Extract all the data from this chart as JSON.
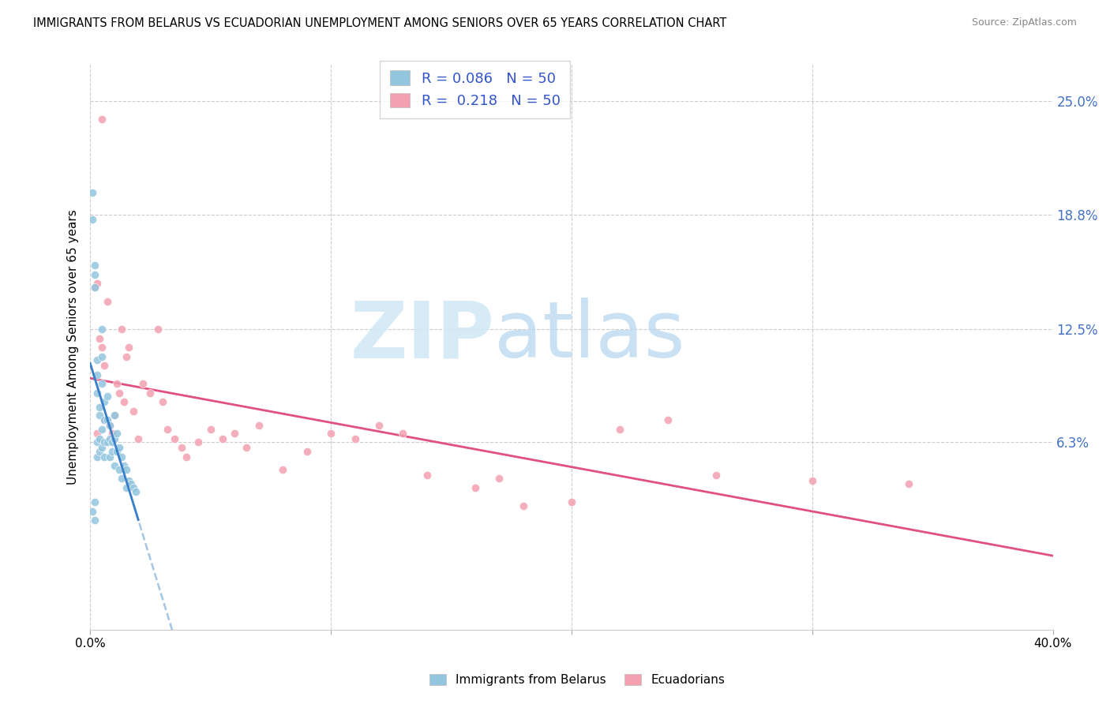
{
  "title": "IMMIGRANTS FROM BELARUS VS ECUADORIAN UNEMPLOYMENT AMONG SENIORS OVER 65 YEARS CORRELATION CHART",
  "source": "Source: ZipAtlas.com",
  "ylabel": "Unemployment Among Seniors over 65 years",
  "ytick_labels": [
    "6.3%",
    "12.5%",
    "18.8%",
    "25.0%"
  ],
  "ytick_values": [
    0.063,
    0.125,
    0.188,
    0.25
  ],
  "xlim": [
    0.0,
    0.4
  ],
  "ylim": [
    -0.04,
    0.27
  ],
  "legend_labels": [
    "Immigrants from Belarus",
    "Ecuadorians"
  ],
  "R_belarus": 0.086,
  "N_belarus": 50,
  "R_ecuador": 0.218,
  "N_ecuador": 50,
  "color_belarus": "#92C5DE",
  "color_ecuador": "#F4A0B0",
  "line_color_belarus_solid": "#3A7DC9",
  "line_color_belarus_dash": "#9ABFE0",
  "line_color_ecuador": "#E05080",
  "watermark_zip": "ZIP",
  "watermark_atlas": "atlas",
  "watermark_color_zip": "#D8EBF8",
  "watermark_color_atlas": "#C8DFF0",
  "belarus_x": [
    0.001,
    0.001,
    0.002,
    0.002,
    0.002,
    0.002,
    0.003,
    0.003,
    0.003,
    0.003,
    0.003,
    0.004,
    0.004,
    0.004,
    0.004,
    0.005,
    0.005,
    0.005,
    0.005,
    0.005,
    0.006,
    0.006,
    0.006,
    0.006,
    0.007,
    0.007,
    0.007,
    0.008,
    0.008,
    0.008,
    0.009,
    0.009,
    0.01,
    0.01,
    0.01,
    0.011,
    0.011,
    0.012,
    0.012,
    0.013,
    0.013,
    0.014,
    0.015,
    0.015,
    0.016,
    0.017,
    0.018,
    0.019,
    0.001,
    0.002
  ],
  "belarus_y": [
    0.185,
    0.2,
    0.16,
    0.155,
    0.148,
    0.02,
    0.108,
    0.1,
    0.09,
    0.063,
    0.055,
    0.082,
    0.078,
    0.065,
    0.058,
    0.125,
    0.11,
    0.095,
    0.07,
    0.06,
    0.085,
    0.075,
    0.063,
    0.055,
    0.088,
    0.075,
    0.063,
    0.072,
    0.065,
    0.055,
    0.063,
    0.058,
    0.078,
    0.065,
    0.05,
    0.068,
    0.058,
    0.06,
    0.048,
    0.055,
    0.043,
    0.05,
    0.048,
    0.038,
    0.042,
    0.04,
    0.038,
    0.036,
    0.025,
    0.03
  ],
  "ecuador_x": [
    0.002,
    0.003,
    0.004,
    0.005,
    0.006,
    0.006,
    0.007,
    0.008,
    0.009,
    0.01,
    0.011,
    0.012,
    0.013,
    0.014,
    0.015,
    0.016,
    0.018,
    0.02,
    0.022,
    0.025,
    0.028,
    0.03,
    0.032,
    0.035,
    0.038,
    0.04,
    0.045,
    0.05,
    0.055,
    0.06,
    0.065,
    0.07,
    0.08,
    0.09,
    0.1,
    0.11,
    0.12,
    0.13,
    0.14,
    0.16,
    0.17,
    0.18,
    0.2,
    0.22,
    0.24,
    0.26,
    0.3,
    0.34,
    0.003,
    0.005
  ],
  "ecuador_y": [
    0.148,
    0.15,
    0.12,
    0.115,
    0.105,
    0.075,
    0.14,
    0.072,
    0.068,
    0.078,
    0.095,
    0.09,
    0.125,
    0.085,
    0.11,
    0.115,
    0.08,
    0.065,
    0.095,
    0.09,
    0.125,
    0.085,
    0.07,
    0.065,
    0.06,
    0.055,
    0.063,
    0.07,
    0.065,
    0.068,
    0.06,
    0.072,
    0.048,
    0.058,
    0.068,
    0.065,
    0.072,
    0.068,
    0.045,
    0.038,
    0.043,
    0.028,
    0.03,
    0.07,
    0.075,
    0.045,
    0.042,
    0.04,
    0.068,
    0.24
  ]
}
